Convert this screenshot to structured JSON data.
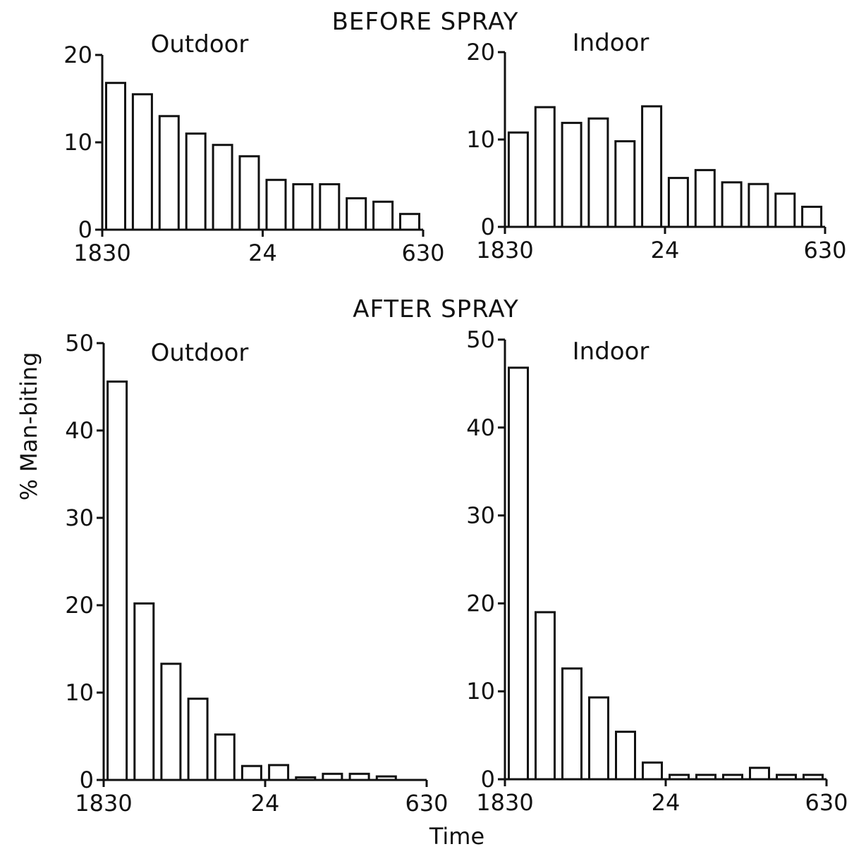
{
  "sections": {
    "before": "BEFORE SPRAY",
    "after": "AFTER SPRAY"
  },
  "ylabel": "% Man-biting",
  "xlabel": "Time",
  "chart_data": [
    {
      "type": "bar",
      "section": "BEFORE SPRAY",
      "title": "Outdoor",
      "ylim": [
        0,
        20
      ],
      "yticks": [
        0,
        10,
        20
      ],
      "xtick_labels": [
        "1830",
        "24",
        "630"
      ],
      "values": [
        16.8,
        15.5,
        13.0,
        11.0,
        9.7,
        8.4,
        5.7,
        5.2,
        5.2,
        3.6,
        3.2,
        1.8
      ],
      "grid": false
    },
    {
      "type": "bar",
      "section": "BEFORE SPRAY",
      "title": "Indoor",
      "ylim": [
        0,
        20
      ],
      "yticks": [
        0,
        10,
        20
      ],
      "xtick_labels": [
        "1830",
        "24",
        "630"
      ],
      "values": [
        10.8,
        13.7,
        11.9,
        12.4,
        9.8,
        13.8,
        5.6,
        6.5,
        5.1,
        4.9,
        3.8,
        2.3
      ],
      "grid": false
    },
    {
      "type": "bar",
      "section": "AFTER SPRAY",
      "title": "Outdoor",
      "ylim": [
        0,
        50
      ],
      "yticks": [
        0,
        10,
        20,
        30,
        40,
        50
      ],
      "xtick_labels": [
        "1830",
        "24",
        "630"
      ],
      "values": [
        45.6,
        20.2,
        13.3,
        9.3,
        5.2,
        1.6,
        1.7,
        0.3,
        0.7,
        0.7,
        0.4,
        0
      ],
      "grid": false
    },
    {
      "type": "bar",
      "section": "AFTER SPRAY",
      "title": "Indoor",
      "ylim": [
        0,
        50
      ],
      "yticks": [
        0,
        10,
        20,
        30,
        40,
        50
      ],
      "xtick_labels": [
        "1830",
        "24",
        "630"
      ],
      "values": [
        46.8,
        19.0,
        12.6,
        9.3,
        5.4,
        1.9,
        0.5,
        0.5,
        0.5,
        1.3,
        0.5,
        0.5
      ],
      "grid": false
    }
  ]
}
